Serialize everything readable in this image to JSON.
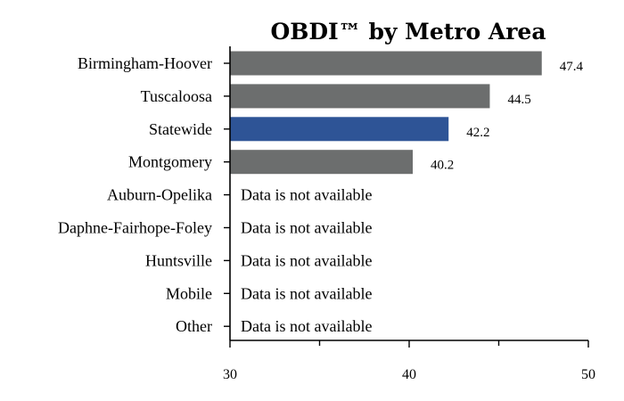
{
  "chart_data": {
    "type": "bar",
    "orientation": "horizontal",
    "title": "OBDI™ by Metro Area",
    "xlabel": "",
    "ylabel": "",
    "xlim": [
      30,
      50
    ],
    "xticks": [
      30,
      40,
      50
    ],
    "xtick_labels": [
      "30",
      "40",
      "50"
    ],
    "grid": false,
    "legend": "none",
    "unavailable_text": "Data is not available",
    "colors": {
      "default": "#6c6e6e",
      "highlight": "#2e5496"
    },
    "categories": [
      "Birmingham-Hoover",
      "Tuscaloosa",
      "Statewide",
      "Montgomery",
      "Auburn-Opelika",
      "Daphne-Fairhope-Foley",
      "Huntsville",
      "Mobile",
      "Other"
    ],
    "values": [
      47.4,
      44.5,
      42.2,
      40.2,
      null,
      null,
      null,
      null,
      null
    ],
    "value_labels": [
      "47.4",
      "44.5",
      "42.2",
      "40.2",
      "",
      "",
      "",
      "",
      ""
    ],
    "highlighted": [
      false,
      false,
      true,
      false,
      false,
      false,
      false,
      false,
      false
    ]
  }
}
